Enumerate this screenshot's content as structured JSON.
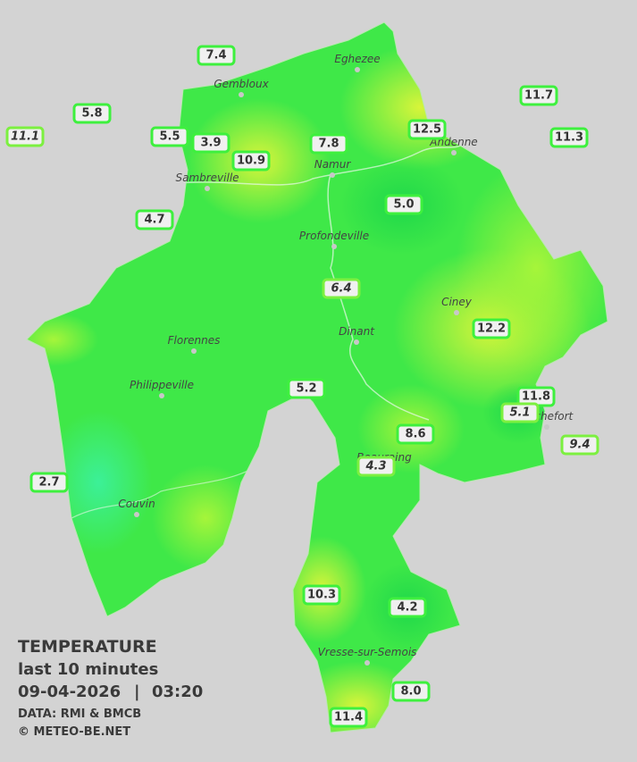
{
  "map": {
    "cities": [
      "Eghezee",
      "Gembloux",
      "Andenne",
      "Namur",
      "Sambreville",
      "Profondeville",
      "Ciney",
      "Dinant",
      "Florennes",
      "Philippeville",
      "Rochefort",
      "Beauraing",
      "Couvin",
      "Vresse-sur-Semois"
    ],
    "stations": [
      "7.4",
      "5.8",
      "11.1",
      "5.5",
      "3.9",
      "10.9",
      "7.8",
      "12.5",
      "11.7",
      "11.3",
      "4.7",
      "5.0",
      "6.4",
      "12.2",
      "5.2",
      "11.8",
      "5.1",
      "8.6",
      "9.4",
      "4.3",
      "2.7",
      "10.3",
      "4.2",
      "8.0",
      "11.4"
    ]
  },
  "legend": {
    "title": "TEMPERATURE",
    "period": "last 10 minutes",
    "date": "09-04-2026",
    "separator": "|",
    "time": "03:20",
    "source": "DATA: RMI & BMCB",
    "copyright": "© METEO-BE.NET"
  }
}
